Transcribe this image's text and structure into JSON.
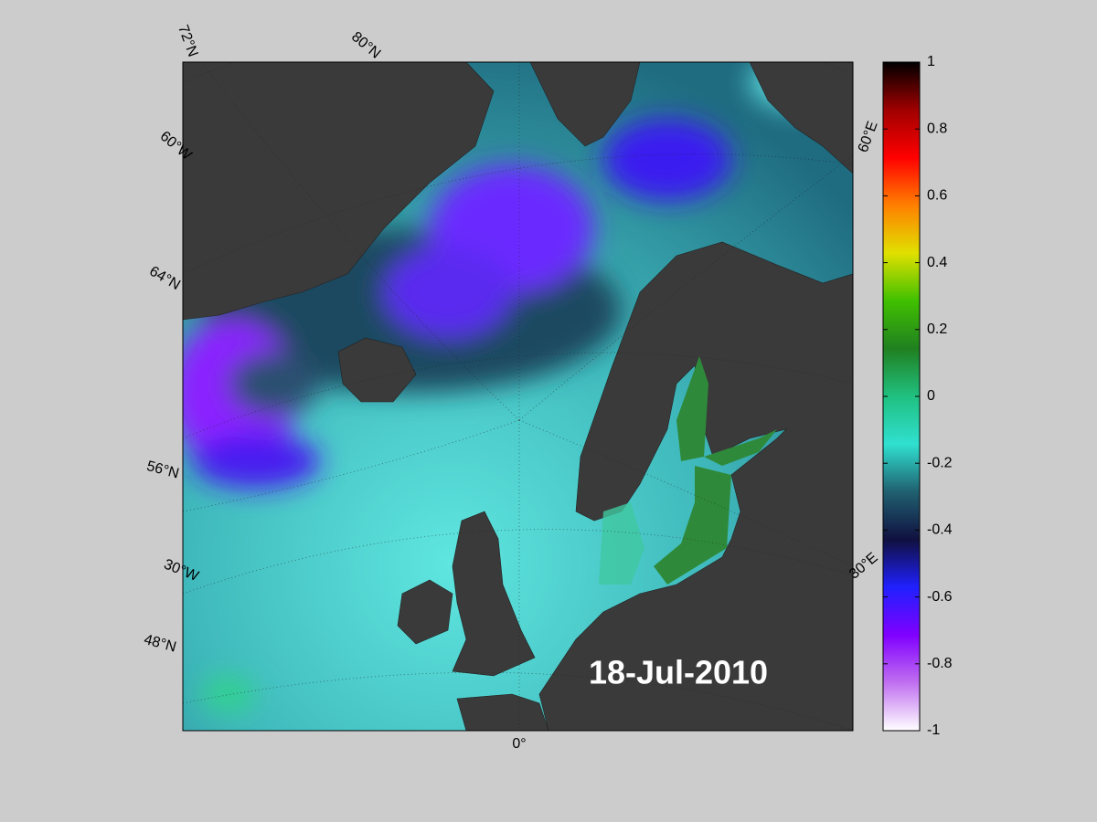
{
  "map": {
    "date": "18-Jul-2010",
    "graticule_labels": [
      "72°N",
      "80°N",
      "60°W",
      "64°N",
      "56°N",
      "30°W",
      "48°N",
      "0°",
      "60°E",
      "30°E"
    ],
    "colorbar": {
      "lim": [
        -1,
        1
      ],
      "ticks": [
        1,
        0.8,
        0.6,
        0.4,
        0.2,
        0,
        -0.2,
        -0.4,
        -0.6,
        -0.8,
        -1
      ],
      "colors": [
        "#ffffff",
        "#c070f0",
        "#8000ff",
        "#2020ff",
        "#101040",
        "#206070",
        "#30e0d0",
        "#20c080",
        "#208020",
        "#40c000",
        "#e0e000",
        "#ff8000",
        "#ff0000",
        "#a00000",
        "#000000"
      ]
    }
  }
}
